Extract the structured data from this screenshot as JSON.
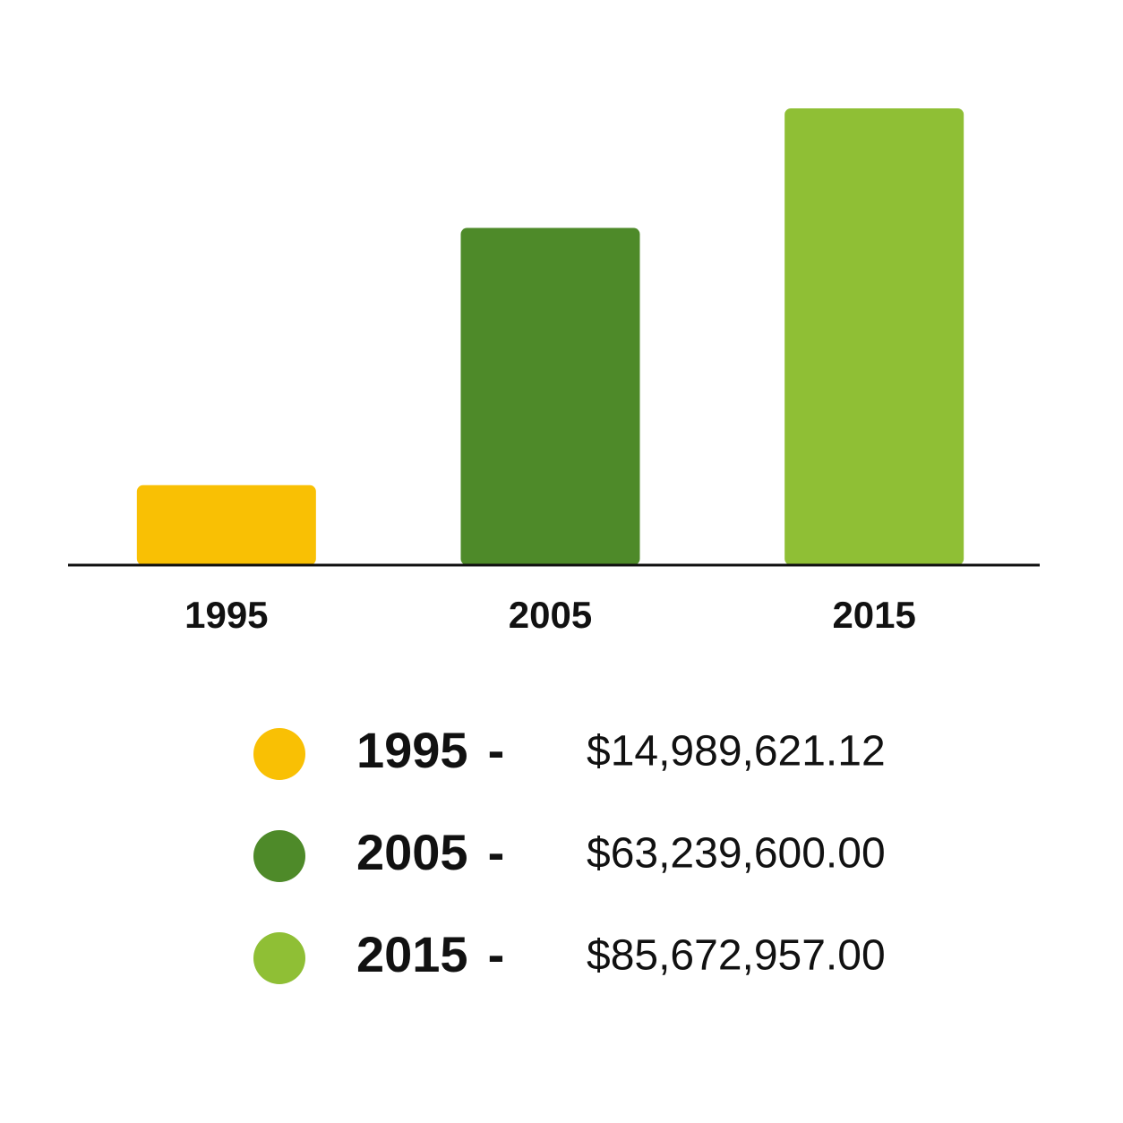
{
  "chart_data": {
    "type": "bar",
    "categories": [
      "1995",
      "2005",
      "2015"
    ],
    "values": [
      14989621.12,
      63239600,
      85672957
    ],
    "value_labels": [
      "$14,989,621.12",
      "$63,239,600.00",
      "$85,672,957.00"
    ],
    "colors": [
      "#f9c004",
      "#4e8a29",
      "#8fbf35"
    ],
    "legend_separator": "-"
  }
}
